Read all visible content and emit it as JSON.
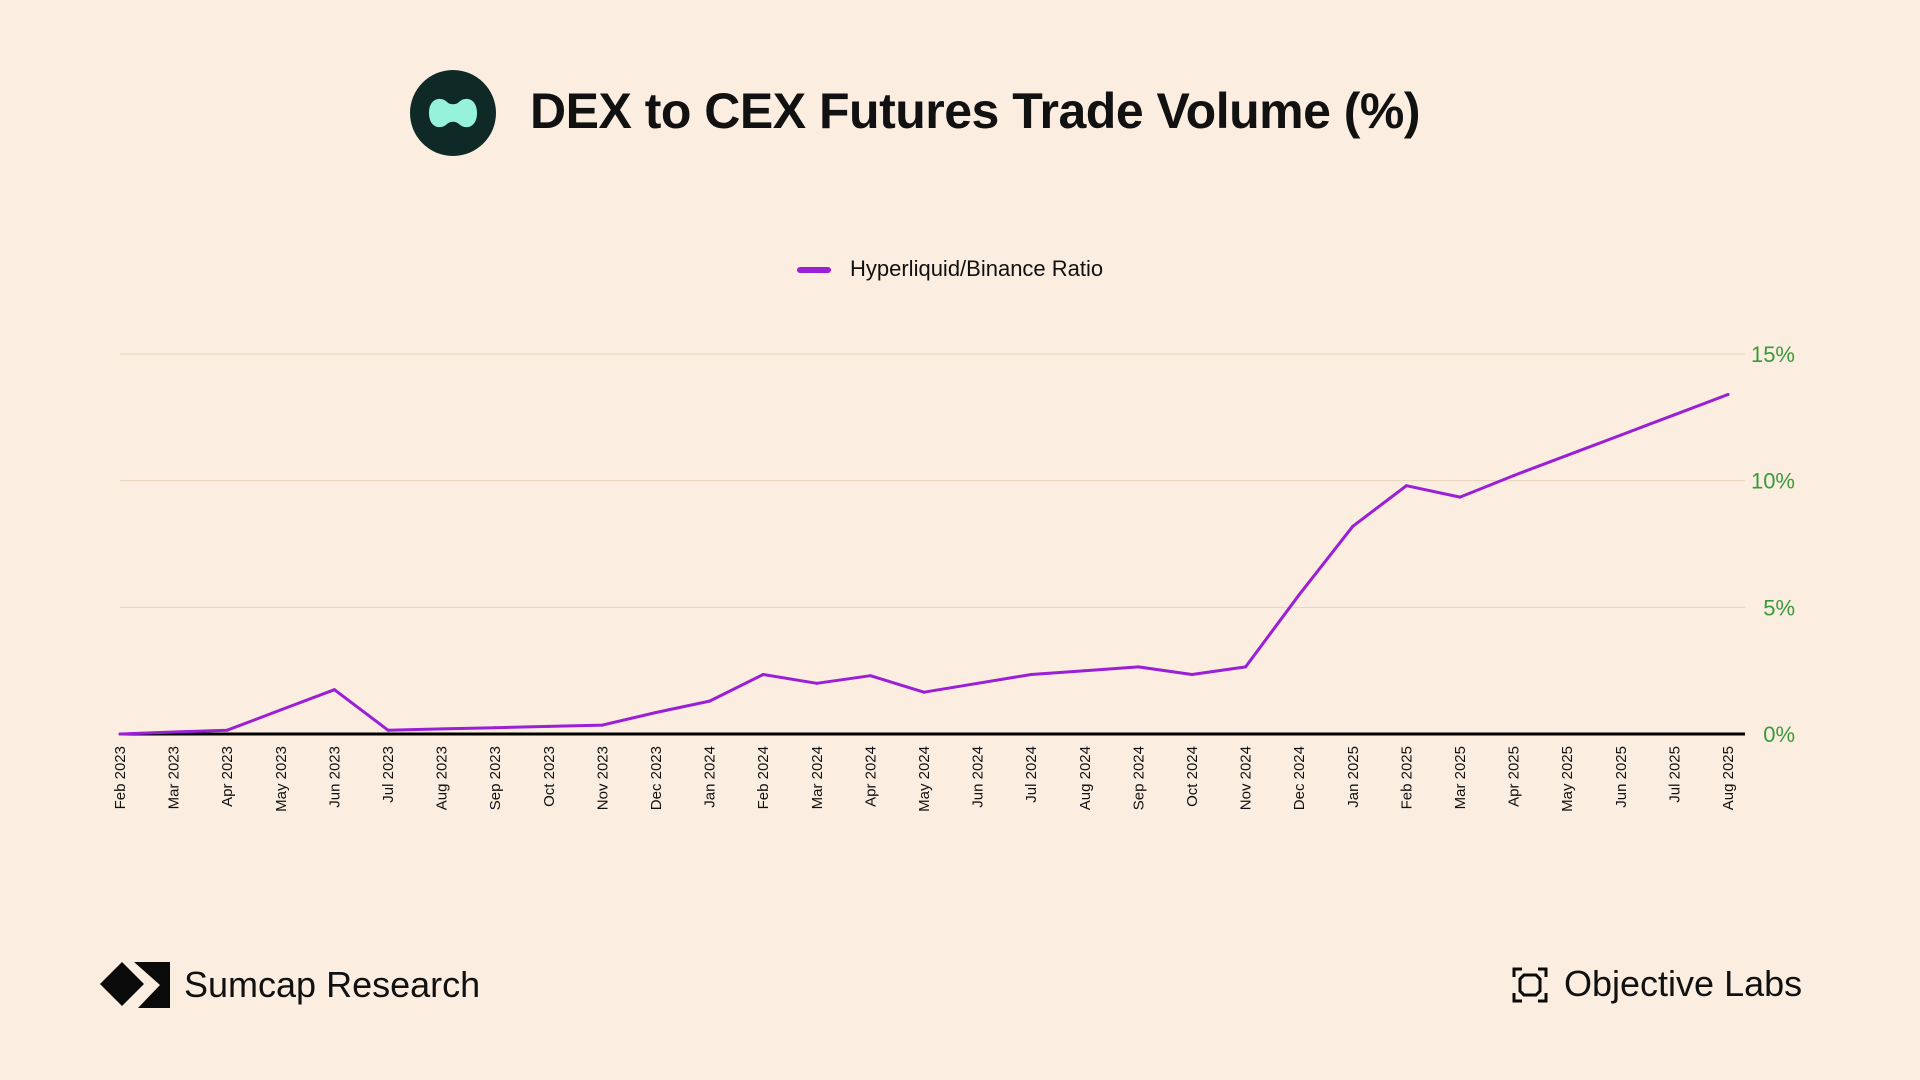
{
  "header": {
    "title": "DEX to CEX Futures Trade Volume (%)",
    "logo_icon": "hyperliquid-logo-icon"
  },
  "colors": {
    "background": "#fbeee0",
    "series": "#9b1fd6",
    "axis_ticks": "#3a9a3a",
    "gridline": "#e6d2bc",
    "baseline": "#000000",
    "logo_bg": "#0f2a26",
    "logo_fg": "#97f2dc"
  },
  "chart_data": {
    "type": "line",
    "title": "DEX to CEX Futures Trade Volume (%)",
    "legend_position": "top-center",
    "y_axis_side": "right",
    "grid": true,
    "ylim": [
      0,
      15
    ],
    "yticks": [
      0,
      5,
      10,
      15
    ],
    "ytick_labels": [
      "0%",
      "5%",
      "10%",
      "15%"
    ],
    "categories": [
      "Feb 2023",
      "Mar 2023",
      "Apr 2023",
      "May 2023",
      "Jun 2023",
      "Jul 2023",
      "Aug 2023",
      "Sep 2023",
      "Oct 2023",
      "Nov 2023",
      "Dec 2023",
      "Jan 2024",
      "Feb 2024",
      "Mar 2024",
      "Apr 2024",
      "May 2024",
      "Jun 2024",
      "Jul 2024",
      "Aug 2024",
      "Sep 2024",
      "Oct 2024",
      "Nov 2024",
      "Dec 2024",
      "Jan 2025",
      "Feb 2025",
      "Mar 2025",
      "Apr 2025",
      "May 2025",
      "Jun 2025",
      "Jul 2025",
      "Aug 2025"
    ],
    "series": [
      {
        "name": "Hyperliquid/Binance Ratio",
        "values": [
          0.0,
          0.08,
          0.15,
          0.95,
          1.75,
          0.15,
          0.2,
          0.25,
          0.3,
          0.35,
          0.85,
          1.3,
          2.35,
          2.0,
          2.3,
          1.65,
          2.0,
          2.35,
          2.5,
          2.65,
          2.35,
          2.65,
          5.5,
          8.2,
          9.8,
          9.35,
          10.2,
          11.0,
          11.8,
          12.6,
          13.4
        ]
      }
    ]
  },
  "footer": {
    "left_brand": "Sumcap Research",
    "left_icon": "sumcap-logo-icon",
    "right_brand": "Objective Labs",
    "right_icon": "objective-labs-logo-icon"
  }
}
